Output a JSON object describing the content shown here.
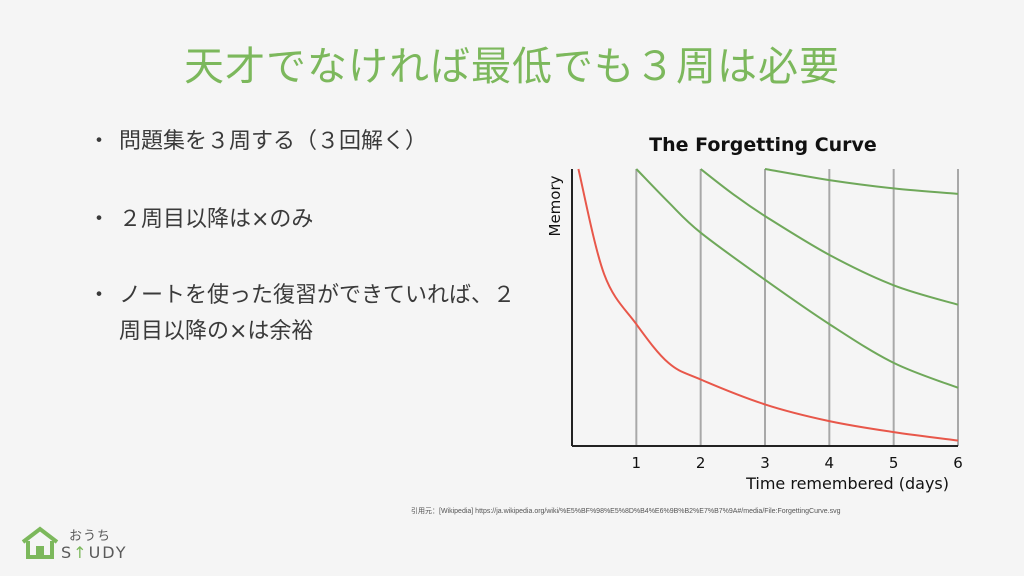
{
  "slide": {
    "title": "天才でなければ最低でも３周は必要",
    "bullets": [
      "問題集を３周する（３回解く）",
      "２周目以降は×のみ",
      "ノートを使った復習ができていれば、２周目以降の×は余裕"
    ],
    "bullet_marker": "・",
    "citation": "引用元：[Wikipedia] https://ja.wikipedia.org/wiki/%E5%BF%98%E5%8D%B4%E6%9B%B2%E7%B7%9A#/media/File:ForgettingCurve.svg",
    "logo": {
      "top": "おうち",
      "bottom_pre": "S",
      "bottom_accent": "↑",
      "bottom_post": "UDY",
      "icon": "house-icon"
    }
  },
  "chart_data": {
    "type": "line",
    "title": "The Forgetting Curve",
    "xlabel": "Time remembered (days)",
    "ylabel": "Memory",
    "x_ticks": [
      "1",
      "2",
      "3",
      "4",
      "5",
      "6"
    ],
    "xlim": [
      0,
      6
    ],
    "ylim": [
      0,
      100
    ],
    "review_lines_x": [
      1,
      2,
      3,
      4,
      5,
      6
    ],
    "series": [
      {
        "color": "#e8574a",
        "x": [
          0.1,
          0.5,
          1,
          1.5,
          2,
          3,
          4,
          5,
          6
        ],
        "y": [
          100,
          62,
          44,
          30,
          24,
          15,
          9,
          5,
          2
        ]
      },
      {
        "color": "#6fa85a",
        "x": [
          1,
          1.5,
          2,
          3,
          4,
          5,
          6
        ],
        "y": [
          100,
          88,
          77,
          60,
          44,
          30,
          21
        ]
      },
      {
        "color": "#6fa85a",
        "x": [
          2,
          2.5,
          3,
          4,
          5,
          6
        ],
        "y": [
          100,
          91,
          83,
          69,
          58,
          51
        ]
      },
      {
        "color": "#6fa85a",
        "x": [
          3,
          4,
          5,
          6
        ],
        "y": [
          100,
          96,
          93,
          91
        ]
      }
    ]
  }
}
